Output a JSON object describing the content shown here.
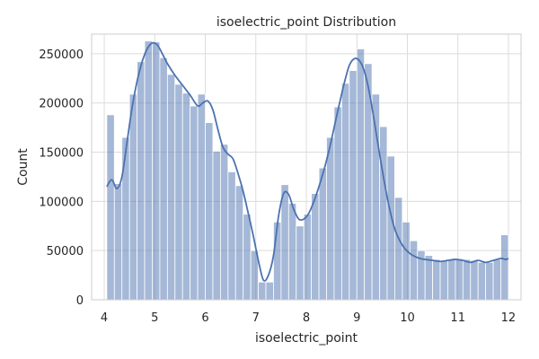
{
  "chart_data": {
    "type": "bar",
    "title": "isoelectric_point Distribution",
    "xlabel": "isoelectric_point",
    "ylabel": "Count",
    "xlim": [
      3.75,
      12.25
    ],
    "ylim": [
      0,
      270000
    ],
    "xticks": [
      4,
      5,
      6,
      7,
      8,
      9,
      10,
      11,
      12
    ],
    "yticks": [
      0,
      50000,
      100000,
      150000,
      200000,
      250000
    ],
    "grid": true,
    "colors": {
      "bar": "#4C72B0",
      "line": "#4C72B0",
      "grid": "#dcdcdc",
      "frame": "#cccccc"
    },
    "bins": {
      "edges": [
        4.05,
        4.2,
        4.35,
        4.5,
        4.65,
        4.8,
        4.95,
        5.1,
        5.25,
        5.4,
        5.55,
        5.7,
        5.85,
        6.0,
        6.15,
        6.3,
        6.45,
        6.6,
        6.75,
        6.9,
        7.05,
        7.2,
        7.35,
        7.5,
        7.65,
        7.8,
        7.95,
        8.1,
        8.25,
        8.4,
        8.55,
        8.7,
        8.85,
        9.0,
        9.15,
        9.3,
        9.45,
        9.6,
        9.75,
        9.9,
        10.05,
        10.2,
        10.35,
        10.5,
        10.65,
        10.8,
        10.95,
        11.1,
        11.25,
        11.4,
        11.55,
        11.7,
        11.85,
        12.0
      ],
      "counts": [
        188000,
        118000,
        165000,
        209000,
        242000,
        263000,
        262000,
        246000,
        229000,
        219000,
        210000,
        197000,
        209000,
        180000,
        151000,
        158000,
        130000,
        116000,
        87000,
        50000,
        18000,
        18000,
        79000,
        117000,
        98000,
        75000,
        87000,
        108000,
        134000,
        165000,
        196000,
        220000,
        233000,
        255000,
        240000,
        209000,
        176000,
        146000,
        104000,
        79000,
        60000,
        50000,
        45000,
        41000,
        40000,
        41000,
        41000,
        41000,
        40000,
        38000,
        38000,
        41000,
        66000
      ]
    },
    "kde": {
      "x": [
        4.05,
        4.15,
        4.25,
        4.35,
        4.45,
        4.55,
        4.65,
        4.75,
        4.85,
        4.95,
        5.05,
        5.15,
        5.25,
        5.4,
        5.55,
        5.7,
        5.85,
        5.95,
        6.05,
        6.15,
        6.25,
        6.35,
        6.45,
        6.55,
        6.65,
        6.75,
        6.85,
        6.95,
        7.05,
        7.15,
        7.25,
        7.35,
        7.45,
        7.55,
        7.65,
        7.75,
        7.85,
        7.95,
        8.05,
        8.15,
        8.25,
        8.35,
        8.45,
        8.55,
        8.65,
        8.75,
        8.85,
        8.95,
        9.05,
        9.15,
        9.25,
        9.35,
        9.45,
        9.55,
        9.65,
        9.75,
        9.85,
        9.95,
        10.05,
        10.15,
        10.25,
        10.35,
        10.5,
        10.65,
        10.8,
        10.95,
        11.1,
        11.25,
        11.4,
        11.55,
        11.7,
        11.85,
        11.95,
        12.0
      ],
      "y": [
        115000,
        122000,
        113000,
        125000,
        160000,
        195000,
        222000,
        242000,
        255000,
        261000,
        259000,
        250000,
        240000,
        228000,
        218000,
        208000,
        197000,
        200000,
        202000,
        193000,
        173000,
        155000,
        148000,
        143000,
        128000,
        110000,
        88000,
        65000,
        40000,
        20000,
        25000,
        45000,
        85000,
        108000,
        107000,
        92000,
        82000,
        82000,
        88000,
        100000,
        115000,
        132000,
        152000,
        175000,
        198000,
        220000,
        238000,
        245000,
        243000,
        232000,
        210000,
        180000,
        148000,
        118000,
        92000,
        72000,
        60000,
        52000,
        47000,
        44000,
        42000,
        41000,
        40000,
        39000,
        40000,
        41000,
        40000,
        38000,
        40000,
        38000,
        40000,
        42000,
        41000,
        42000
      ]
    }
  }
}
